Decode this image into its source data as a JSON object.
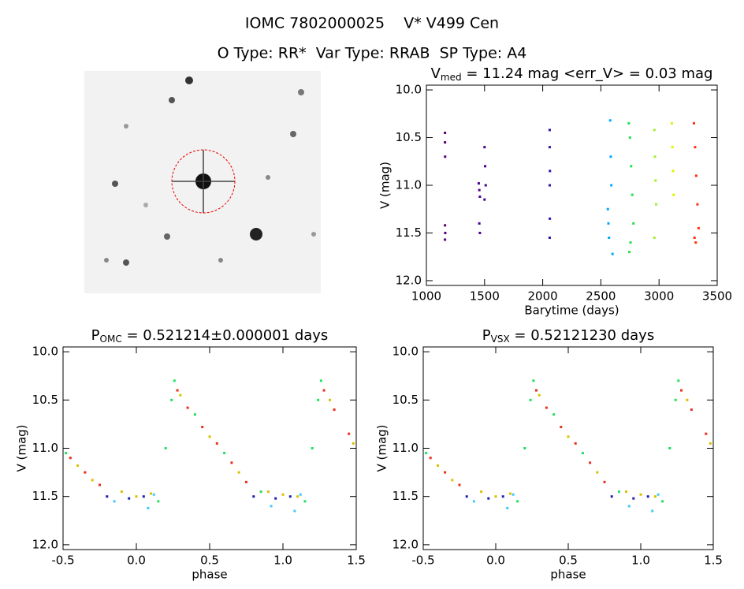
{
  "header": {
    "title": "IOMC 7802000025    V* V499 Cen",
    "subtitle": "O Type: RR*  Var Type: RRAB  SP Type: A4"
  },
  "chart_data": [
    {
      "type": "scatter",
      "title_symbol": "V",
      "title_subscript": "med",
      "title_rest": " = 11.24 mag <err_V> = 0.03 mag",
      "xlabel": "Barytime (days)",
      "ylabel": "V (mag)",
      "xlim": [
        1000,
        3500
      ],
      "ylim": [
        12.05,
        9.95
      ],
      "xticks": [
        1000,
        1500,
        2000,
        2500,
        3000,
        3500
      ],
      "yticks": [
        {
          "value": 10,
          "label": "10.0"
        },
        10.5,
        {
          "value": 11,
          "label": "11.0"
        },
        11.5,
        {
          "value": 12,
          "label": "12.0"
        }
      ],
      "series": [
        {
          "color": "#5a0078",
          "x": [
            1160,
            1160,
            1161,
            1160,
            1162,
            1160
          ],
          "values": [
            10.45,
            10.55,
            10.7,
            11.42,
            11.5,
            11.57
          ]
        },
        {
          "color": "#4a0090",
          "x": [
            1450,
            1455,
            1460,
            1500,
            1505,
            1510,
            1500,
            1455,
            1460
          ],
          "values": [
            10.98,
            11.05,
            11.12,
            10.6,
            10.8,
            11.0,
            11.15,
            11.4,
            11.5
          ]
        },
        {
          "color": "#3a10b0",
          "x": [
            2060,
            2060,
            2062,
            2060,
            2061,
            2060
          ],
          "values": [
            10.42,
            10.6,
            10.85,
            11.0,
            11.35,
            11.55
          ]
        },
        {
          "color": "#00a8ff",
          "x": [
            2560,
            2565,
            2570,
            2580,
            2585,
            2590,
            2600
          ],
          "values": [
            11.25,
            11.4,
            11.55,
            10.32,
            10.7,
            11.0,
            11.72
          ]
        },
        {
          "color": "#20e050",
          "x": [
            2740,
            2750,
            2760,
            2770,
            2780,
            2755,
            2745
          ],
          "values": [
            10.35,
            10.5,
            10.8,
            11.1,
            11.4,
            11.6,
            11.7
          ]
        },
        {
          "color": "#a0f030",
          "x": [
            2960,
            2965,
            2970,
            2975,
            2960
          ],
          "values": [
            10.42,
            10.7,
            10.95,
            11.2,
            11.55
          ]
        },
        {
          "color": "#e0f000",
          "x": [
            3110,
            3115,
            3120,
            3125
          ],
          "values": [
            10.35,
            10.6,
            10.85,
            11.1
          ]
        },
        {
          "color": "#ff3010",
          "x": [
            3300,
            3310,
            3320,
            3330,
            3340,
            3305,
            3315
          ],
          "values": [
            10.35,
            10.6,
            10.9,
            11.2,
            11.45,
            11.55,
            11.6
          ]
        }
      ]
    },
    {
      "type": "scatter",
      "title_symbol": "P",
      "title_subscript": "OMC",
      "title_rest": " = 0.521214±0.000001 days",
      "xlabel": "phase",
      "ylabel": "V (mag)",
      "xlim": [
        -0.5,
        1.5
      ],
      "ylim": [
        12.05,
        9.95
      ],
      "xticks": [
        -0.5,
        {
          "value": 0,
          "label": "0.0"
        },
        0.5,
        {
          "value": 1,
          "label": "1.0"
        },
        1.5
      ],
      "yticks": [
        {
          "value": 10,
          "label": "10.0"
        },
        10.5,
        {
          "value": 11,
          "label": "11.0"
        },
        11.5,
        {
          "value": 12,
          "label": "12.0"
        }
      ],
      "series": [
        {
          "color": "#e8301c",
          "x": [
            -0.45,
            -0.35,
            -0.25,
            0.28,
            0.35,
            0.45,
            0.55,
            0.65,
            0.75,
            1.28,
            1.35,
            1.45
          ],
          "values": [
            11.1,
            11.25,
            11.38,
            10.4,
            10.58,
            10.78,
            10.95,
            11.15,
            11.35,
            10.4,
            10.6,
            10.85
          ]
        },
        {
          "color": "#d8c000",
          "x": [
            -0.4,
            -0.3,
            -0.1,
            0.0,
            0.1,
            0.3,
            0.5,
            0.7,
            0.9,
            1.0,
            1.1,
            1.32,
            1.48
          ],
          "values": [
            11.18,
            11.33,
            11.45,
            11.5,
            11.47,
            10.45,
            10.88,
            11.25,
            11.45,
            11.48,
            11.5,
            10.5,
            10.95
          ]
        },
        {
          "color": "#20e060",
          "x": [
            -0.48,
            0.15,
            0.2,
            0.24,
            0.26,
            0.4,
            0.6,
            0.85,
            1.15,
            1.2,
            1.24,
            1.26
          ],
          "values": [
            11.05,
            11.55,
            11.0,
            10.5,
            10.3,
            10.65,
            11.05,
            11.45,
            11.55,
            11.0,
            10.5,
            10.3
          ]
        },
        {
          "color": "#2020b0",
          "x": [
            -0.2,
            -0.05,
            0.05,
            0.8,
            0.95,
            1.05
          ],
          "values": [
            11.5,
            11.52,
            11.5,
            11.5,
            11.52,
            11.5
          ]
        },
        {
          "color": "#40c8ff",
          "x": [
            -0.15,
            0.08,
            0.12,
            0.92,
            1.08,
            1.12
          ],
          "values": [
            11.55,
            11.62,
            11.48,
            11.6,
            11.65,
            11.48
          ]
        }
      ]
    },
    {
      "type": "scatter",
      "title_symbol": "P",
      "title_subscript": "VSX",
      "title_rest": " = 0.52121230 days",
      "xlabel": "phase",
      "ylabel": "V (mag)",
      "xlim": [
        -0.5,
        1.5
      ],
      "ylim": [
        12.05,
        9.95
      ],
      "xticks": [
        -0.5,
        {
          "value": 0,
          "label": "0.0"
        },
        0.5,
        {
          "value": 1,
          "label": "1.0"
        },
        1.5
      ],
      "yticks": [
        {
          "value": 10,
          "label": "10.0"
        },
        10.5,
        {
          "value": 11,
          "label": "11.0"
        },
        11.5,
        {
          "value": 12,
          "label": "12.0"
        }
      ],
      "series": [
        {
          "color": "#e8301c",
          "x": [
            -0.45,
            -0.35,
            -0.25,
            0.28,
            0.35,
            0.45,
            0.55,
            0.65,
            0.75,
            1.28,
            1.35,
            1.45
          ],
          "values": [
            11.1,
            11.25,
            11.38,
            10.4,
            10.58,
            10.78,
            10.95,
            11.15,
            11.35,
            10.4,
            10.6,
            10.85
          ]
        },
        {
          "color": "#d8c000",
          "x": [
            -0.4,
            -0.3,
            -0.1,
            0.0,
            0.1,
            0.3,
            0.5,
            0.7,
            0.9,
            1.0,
            1.1,
            1.32,
            1.48
          ],
          "values": [
            11.18,
            11.33,
            11.45,
            11.5,
            11.47,
            10.45,
            10.88,
            11.25,
            11.45,
            11.48,
            11.5,
            10.5,
            10.95
          ]
        },
        {
          "color": "#20e060",
          "x": [
            -0.48,
            0.15,
            0.2,
            0.24,
            0.26,
            0.4,
            0.6,
            0.85,
            1.15,
            1.2,
            1.24,
            1.26
          ],
          "values": [
            11.05,
            11.55,
            11.0,
            10.5,
            10.3,
            10.65,
            11.05,
            11.45,
            11.55,
            11.0,
            10.5,
            10.3
          ]
        },
        {
          "color": "#2020b0",
          "x": [
            -0.2,
            -0.05,
            0.05,
            0.8,
            0.95,
            1.05
          ],
          "values": [
            11.5,
            11.52,
            11.5,
            11.5,
            11.52,
            11.5
          ]
        },
        {
          "color": "#40c8ff",
          "x": [
            -0.15,
            0.08,
            0.12,
            0.92,
            1.08,
            1.12
          ],
          "values": [
            11.55,
            11.62,
            11.48,
            11.6,
            11.65,
            11.48
          ]
        }
      ]
    }
  ]
}
